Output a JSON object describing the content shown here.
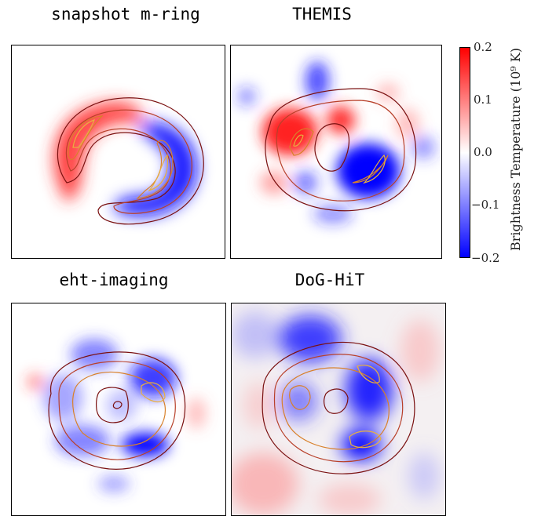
{
  "chart_data": [
    {
      "type": "heatmap",
      "title": "snapshot m-ring",
      "contour_levels": 4
    },
    {
      "type": "heatmap",
      "title": "THEMIS",
      "contour_levels": 4
    },
    {
      "type": "heatmap",
      "title": "eht-imaging",
      "contour_levels": 4
    },
    {
      "type": "heatmap",
      "title": "DoG-HiT",
      "contour_levels": 4
    }
  ],
  "colorbar": {
    "label": "Brightness Temperature (10⁹ K)",
    "range": [
      -0.2,
      0.2
    ],
    "ticks": [
      "0.2",
      "0.1",
      "0.0",
      "−0.1",
      "−0.2"
    ],
    "colormap": [
      "#0000ff",
      "#ffffff",
      "#ff0000"
    ]
  },
  "contour_colors": [
    "#7a1010",
    "#b8402a",
    "#d8802a",
    "#e8b040"
  ]
}
